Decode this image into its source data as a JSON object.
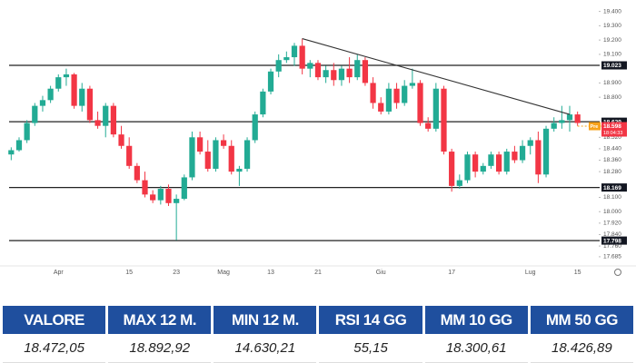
{
  "chart_data": {
    "type": "candlestick",
    "categories": [
      null,
      null,
      null,
      null,
      null,
      null,
      "Apr",
      null,
      null,
      null,
      null,
      null,
      null,
      null,
      null,
      "15",
      null,
      null,
      null,
      null,
      null,
      "23",
      null,
      null,
      null,
      null,
      null,
      "Mag",
      null,
      null,
      null,
      null,
      null,
      "13",
      null,
      null,
      null,
      null,
      null,
      "21",
      null,
      null,
      null,
      null,
      null,
      null,
      null,
      "Giu",
      null,
      null,
      null,
      null,
      null,
      null,
      null,
      null,
      "17",
      null,
      null,
      null,
      null,
      null,
      null,
      null,
      null,
      null,
      "Lug",
      null,
      null,
      null,
      null,
      null,
      "15"
    ],
    "open": [
      18400,
      18430,
      18500,
      18620,
      18740,
      18780,
      18860,
      18940,
      18960,
      18740,
      18860,
      18640,
      18600,
      18740,
      18540,
      18460,
      18320,
      18220,
      18120,
      18080,
      18160,
      18060,
      18090,
      18240,
      18520,
      18420,
      18300,
      18500,
      18460,
      18280,
      18300,
      18500,
      18680,
      18840,
      18980,
      19060,
      19080,
      19160,
      19000,
      19040,
      18940,
      18990,
      18920,
      19000,
      18940,
      19060,
      18900,
      18760,
      18700,
      18860,
      18760,
      18880,
      18900,
      18620,
      18580,
      18860,
      18420,
      18180,
      18220,
      18400,
      18280,
      18320,
      18400,
      18280,
      18420,
      18360,
      18460,
      18500,
      18260,
      18580,
      18620,
      18640,
      18680
    ],
    "high": [
      18450,
      18520,
      18640,
      18760,
      18810,
      18880,
      18960,
      19000,
      18970,
      18900,
      18880,
      18700,
      18760,
      18760,
      18600,
      18520,
      18340,
      18280,
      18150,
      18180,
      18190,
      18120,
      18260,
      18560,
      18560,
      18500,
      18520,
      18540,
      18500,
      18320,
      18520,
      18700,
      18860,
      19000,
      19100,
      19120,
      19180,
      19210,
      19060,
      19060,
      19020,
      19040,
      19020,
      19080,
      19100,
      19080,
      18940,
      18800,
      18900,
      18900,
      18920,
      19000,
      18920,
      18660,
      18900,
      18880,
      18440,
      18260,
      18420,
      18420,
      18340,
      18420,
      18420,
      18440,
      18460,
      18500,
      18520,
      18560,
      18600,
      18660,
      18740,
      18740,
      18700
    ],
    "low": [
      18360,
      18420,
      18480,
      18600,
      18700,
      18760,
      18840,
      18880,
      18720,
      18700,
      18620,
      18580,
      18520,
      18520,
      18440,
      18300,
      18200,
      18100,
      18060,
      18050,
      18040,
      17800,
      18080,
      18220,
      18400,
      18280,
      18280,
      18440,
      18260,
      18180,
      18280,
      18480,
      18660,
      18820,
      18940,
      19040,
      19020,
      18960,
      18940,
      18920,
      18900,
      18880,
      18880,
      18900,
      18920,
      18880,
      18720,
      18680,
      18680,
      18720,
      18740,
      18860,
      18600,
      18560,
      18560,
      18400,
      18140,
      18160,
      18200,
      18240,
      18260,
      18300,
      18260,
      18260,
      18340,
      18340,
      18400,
      18200,
      18240,
      18560,
      18580,
      18560,
      18600
    ],
    "close": [
      18430,
      18500,
      18620,
      18740,
      18780,
      18860,
      18940,
      18960,
      18740,
      18860,
      18640,
      18600,
      18740,
      18540,
      18460,
      18320,
      18220,
      18120,
      18080,
      18160,
      18060,
      18090,
      18240,
      18520,
      18420,
      18300,
      18500,
      18460,
      18280,
      18300,
      18500,
      18680,
      18840,
      18980,
      19060,
      19080,
      19160,
      19000,
      19040,
      18940,
      18990,
      18920,
      19000,
      18940,
      19060,
      18900,
      18760,
      18700,
      18860,
      18760,
      18880,
      18900,
      18620,
      18580,
      18860,
      18420,
      18180,
      18220,
      18400,
      18280,
      18320,
      18400,
      18280,
      18420,
      18360,
      18460,
      18500,
      18260,
      18580,
      18620,
      18640,
      18680,
      18620
    ],
    "up_color": "#22ab94",
    "down_color": "#f23645",
    "ylim": [
      17640,
      19480
    ],
    "yticks": [
      {
        "value": 19400,
        "label": "19.400"
      },
      {
        "value": 19300,
        "label": "19.300"
      },
      {
        "value": 19200,
        "label": "19.200"
      },
      {
        "value": 19100,
        "label": "19.100"
      },
      {
        "value": 18900,
        "label": "18.900"
      },
      {
        "value": 18800,
        "label": "18.800"
      },
      {
        "value": 18520,
        "label": "18.520"
      },
      {
        "value": 18440,
        "label": "18.440"
      },
      {
        "value": 18360,
        "label": "18.360"
      },
      {
        "value": 18280,
        "label": "18.280"
      },
      {
        "value": 18100,
        "label": "18.100"
      },
      {
        "value": 18000,
        "label": "18.000"
      },
      {
        "value": 17920,
        "label": "17.920"
      },
      {
        "value": 17840,
        "label": "17.840"
      },
      {
        "value": 17760,
        "label": "17.760"
      },
      {
        "value": 17685,
        "label": "17.685"
      }
    ],
    "levels": [
      {
        "value": 19023,
        "label": "19.023"
      },
      {
        "value": 18629,
        "label": "18.629"
      },
      {
        "value": 18169,
        "label": "18.169"
      },
      {
        "value": 17798,
        "label": "17.798"
      }
    ],
    "price_tag": {
      "value": 18598,
      "label": "18.598",
      "prefix": "Pre",
      "countdown": "18:04:33"
    },
    "trendline": {
      "x": [
        37,
        71
      ],
      "y": [
        19210,
        18680
      ]
    }
  },
  "table": {
    "headers": [
      "VALORE",
      "MAX 12 M.",
      "MIN 12 M.",
      "RSI 14 GG",
      "MM 10 GG",
      "MM 50 GG"
    ],
    "rows": [
      [
        "18.472,05",
        "18.892,92",
        "14.630,21",
        "55,15",
        "18.300,61",
        "18.426,89"
      ]
    ]
  }
}
